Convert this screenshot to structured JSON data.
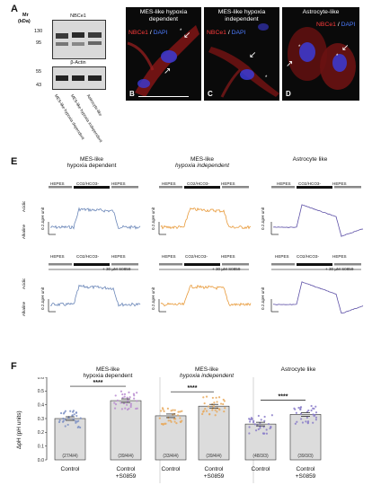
{
  "panel_a": {
    "letter": "A",
    "mr_label": "Mr",
    "kda_label": "(kDa)",
    "blot_top_title": "NBCe1",
    "blot_bottom_title": "β-Actin",
    "mw_top": [
      "130",
      "95"
    ],
    "mw_bottom": [
      "55",
      "43"
    ],
    "lanes": [
      "MES-like hypoxia dependent",
      "MES-like hypoxia independent",
      "Astrocyte-like"
    ]
  },
  "panels_micro": [
    {
      "letter": "B",
      "title": "MES-like hypoxia dependent",
      "legend_a": "NBCe1",
      "legend_sep": "/",
      "legend_b": "DAPI"
    },
    {
      "letter": "C",
      "title": "MES-like hypoxia independent",
      "legend_a": "NBCe1",
      "legend_sep": "/",
      "legend_b": "DAPI"
    },
    {
      "letter": "D",
      "title": "Astrocyte-like",
      "legend_a": "NBCe1",
      "legend_sep": "/",
      "legend_b": "DAPI"
    }
  ],
  "panel_e": {
    "letter": "E",
    "columns": [
      {
        "title_l1": "MES-like",
        "title_l2": "hypoxia dependent",
        "color": "#6a86b8"
      },
      {
        "title_l1": "MES-like",
        "title_l2": "hypoxia independent",
        "color": "#e89a3a"
      },
      {
        "title_l1": "Astrocyte like",
        "title_l2": "",
        "color": "#5c4fa6"
      }
    ],
    "cond_hepes": "HEPES",
    "cond_co2": "CO2/HCO3-",
    "inhibitor": "+ 30 µM S0859",
    "scale_label": "0.2 ΔpH unit",
    "acidic": "Acidic",
    "alkaline": "Alkaline"
  },
  "panel_f": {
    "letter": "F",
    "ylabel": "ΔpH (pH units)",
    "yticks": [
      "0.0",
      "0.1",
      "0.2",
      "0.3",
      "0.4",
      "0.5",
      "0.6"
    ],
    "significance": "****",
    "groups": [
      {
        "title_l1": "MES-like",
        "title_l2": "hypoxia dependent",
        "bars": [
          {
            "label_l1": "Control",
            "label_l2": "",
            "value": 0.3,
            "n": "(27/4/4)",
            "color": "#7b8fc4"
          },
          {
            "label_l1": "Control",
            "label_l2": "+S0859",
            "value": 0.43,
            "n": "(39/4/4)",
            "color": "#b98bd0"
          }
        ]
      },
      {
        "title_l1": "MES-like",
        "title_l2": "hypoxia independent",
        "bars": [
          {
            "label_l1": "Control",
            "label_l2": "",
            "value": 0.32,
            "n": "(33/4/4)",
            "color": "#e8a85a"
          },
          {
            "label_l1": "Control",
            "label_l2": "+S0859",
            "value": 0.39,
            "n": "(39/4/4)",
            "color": "#e8a85a"
          }
        ]
      },
      {
        "title_l1": "Astrocyte like",
        "title_l2": "",
        "bars": [
          {
            "label_l1": "Control",
            "label_l2": "",
            "value": 0.26,
            "n": "(48/3/3)",
            "color": "#8a7cc9"
          },
          {
            "label_l1": "Control",
            "label_l2": "+S0859",
            "value": 0.33,
            "n": "(39/3/3)",
            "color": "#8a7cc9"
          }
        ]
      }
    ]
  },
  "chart_data": {
    "type": "bar",
    "ylabel": "ΔpH (pH units)",
    "ylim": [
      0,
      0.6
    ],
    "categories": [
      "Control",
      "Control +S0859",
      "Control",
      "Control +S0859",
      "Control",
      "Control +S0859"
    ],
    "values": [
      0.3,
      0.43,
      0.32,
      0.39,
      0.26,
      0.33
    ],
    "annotations": [
      "(27/4/4)",
      "(39/4/4)",
      "(33/4/4)",
      "(39/4/4)",
      "(48/3/3)",
      "(39/3/3)"
    ],
    "grid": false,
    "legend": "none"
  }
}
